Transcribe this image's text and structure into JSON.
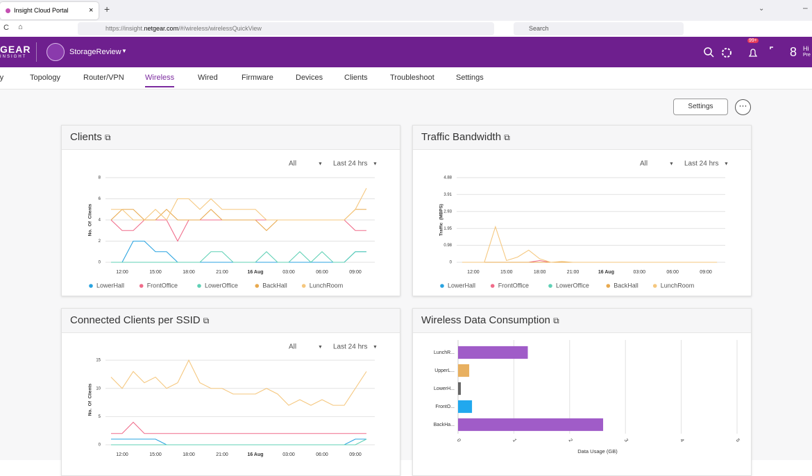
{
  "browser": {
    "tab_title": "Insight Cloud Portal",
    "url_prefix": "https://insight.",
    "url_domain": "netgear.com",
    "url_suffix": "/#/wireless/wirelessQuickView",
    "search": "Search"
  },
  "header": {
    "logo": "GEAR",
    "logo_sub": "INSIGHT",
    "org": "StorageReview",
    "badge": "99+",
    "user_hi": "Hi",
    "user_sub": "Pre"
  },
  "nav": {
    "items": [
      "ry",
      "Topology",
      "Router/VPN",
      "Wireless",
      "Wired",
      "Firmware",
      "Devices",
      "Clients",
      "Troubleshoot",
      "Settings"
    ],
    "active_index": 3
  },
  "settings_button": "Settings",
  "chart_data": [
    {
      "type": "line",
      "title": "Clients",
      "filter": "All",
      "range": "Last 24 hrs",
      "ylabel": "No.  Of  Clients",
      "legend": true,
      "x": [
        -1,
        0,
        1,
        2,
        3,
        4,
        5,
        6,
        7,
        8,
        9,
        10,
        11,
        12,
        13,
        14,
        15,
        16,
        17,
        18,
        19,
        20,
        21,
        22
      ],
      "xlim": [
        -1.5,
        22.75
      ],
      "xticks": [
        {
          "value": 0,
          "label": "12:00"
        },
        {
          "value": 3,
          "label": "15:00"
        },
        {
          "value": 6,
          "label": "18:00"
        },
        {
          "value": 9,
          "label": "21:00"
        },
        {
          "value": 12,
          "label": "16 Aug"
        },
        {
          "value": 15,
          "label": "03:00"
        },
        {
          "value": 18,
          "label": "06:00"
        },
        {
          "value": 21,
          "label": "09:00"
        }
      ],
      "ylim": [
        0,
        8
      ],
      "yticks": [
        0,
        2,
        4,
        6,
        8
      ],
      "grid": true,
      "series": [
        {
          "name": "LowerHall",
          "color": "#29a3e0",
          "values": [
            0,
            0,
            2,
            2,
            1,
            1,
            0,
            0,
            0,
            0,
            0,
            0,
            0,
            0,
            0,
            0,
            0,
            0,
            0,
            0,
            0,
            0,
            1,
            1
          ]
        },
        {
          "name": "FrontOffice",
          "color": "#f06c8a",
          "values": [
            4,
            3,
            3,
            4,
            4,
            4,
            2,
            4,
            4,
            4,
            4,
            4,
            4,
            4,
            4,
            4,
            4,
            4,
            4,
            4,
            4,
            4,
            3,
            3
          ]
        },
        {
          "name": "LowerOffice",
          "color": "#5fd0b5",
          "values": [
            0,
            0,
            0,
            0,
            0,
            0,
            0,
            0,
            0,
            1,
            1,
            0,
            0,
            0,
            1,
            0,
            0,
            1,
            0,
            1,
            0,
            0,
            1,
            1
          ]
        },
        {
          "name": "BackHall",
          "color": "#e8a94e",
          "values": [
            4,
            5,
            5,
            4,
            4,
            5,
            4,
            4,
            4,
            5,
            4,
            4,
            4,
            4,
            3,
            4,
            4,
            4,
            4,
            4,
            4,
            4,
            5,
            5
          ]
        },
        {
          "name": "LunchRoom",
          "color": "#f5c77e",
          "values": [
            5,
            5,
            4,
            4,
            5,
            4,
            6,
            6,
            5,
            6,
            5,
            5,
            5,
            5,
            4,
            4,
            4,
            4,
            4,
            4,
            4,
            4,
            5,
            7
          ]
        }
      ]
    },
    {
      "type": "line",
      "title": "Traffic Bandwidth",
      "filter": "All",
      "range": "Last 24 hrs",
      "ylabel": "Traffic  (MBPS)",
      "legend": true,
      "x": [
        -1,
        0,
        1,
        2,
        3,
        4,
        5,
        6,
        7,
        8,
        9,
        10,
        11,
        12,
        13,
        14,
        15,
        16,
        17,
        18,
        19,
        20,
        21,
        22
      ],
      "xlim": [
        -1.5,
        22.75
      ],
      "xticks": [
        {
          "value": 0,
          "label": "12:00"
        },
        {
          "value": 3,
          "label": "15:00"
        },
        {
          "value": 6,
          "label": "18:00"
        },
        {
          "value": 9,
          "label": "21:00"
        },
        {
          "value": 12,
          "label": "16 Aug"
        },
        {
          "value": 15,
          "label": "03:00"
        },
        {
          "value": 18,
          "label": "06:00"
        },
        {
          "value": 21,
          "label": "09:00"
        }
      ],
      "ylim": [
        0,
        4.88
      ],
      "yticks": [
        0,
        0.98,
        1.95,
        2.93,
        3.91,
        4.88
      ],
      "grid": true,
      "series": [
        {
          "name": "LowerHall",
          "color": "#29a3e0",
          "values": [
            0,
            0,
            0,
            0,
            0,
            0,
            0,
            0,
            0,
            0,
            0,
            0,
            0,
            0,
            0,
            0,
            0,
            0,
            0,
            0,
            0,
            0,
            0,
            0
          ]
        },
        {
          "name": "FrontOffice",
          "color": "#f06c8a",
          "values": [
            0,
            0,
            0,
            0,
            0,
            0,
            0,
            0.1,
            0,
            0,
            0,
            0,
            0,
            0,
            0,
            0,
            0,
            0,
            0,
            0,
            0,
            0,
            0,
            0
          ]
        },
        {
          "name": "LowerOffice",
          "color": "#5fd0b5",
          "values": [
            0,
            0,
            0,
            0,
            0,
            0,
            0,
            0,
            0,
            0,
            0,
            0,
            0,
            0,
            0,
            0,
            0,
            0,
            0,
            0,
            0,
            0,
            0,
            0
          ]
        },
        {
          "name": "BackHall",
          "color": "#e8a94e",
          "values": [
            0,
            0,
            0,
            0,
            0,
            0,
            0,
            0,
            0,
            0,
            0,
            0,
            0,
            0,
            0,
            0,
            0,
            0,
            0,
            0,
            0,
            0,
            0,
            0
          ]
        },
        {
          "name": "LunchRoom",
          "color": "#f5c77e",
          "values": [
            0,
            0,
            0,
            2.05,
            0.1,
            0.3,
            0.7,
            0.2,
            0,
            0.05,
            0,
            0,
            0,
            0,
            0,
            0,
            0,
            0,
            0,
            0,
            0,
            0,
            0,
            0
          ]
        }
      ]
    },
    {
      "type": "line",
      "title": "Connected Clients per SSID",
      "filter": "All",
      "range": "Last 24 hrs",
      "ylabel": "No.  Of  Clients",
      "legend": false,
      "x": [
        -1,
        0,
        1,
        2,
        3,
        4,
        5,
        6,
        7,
        8,
        9,
        10,
        11,
        12,
        13,
        14,
        15,
        16,
        17,
        18,
        19,
        20,
        21,
        22
      ],
      "xlim": [
        -1.5,
        22.75
      ],
      "xticks": [
        {
          "value": 0,
          "label": "12:00"
        },
        {
          "value": 3,
          "label": "15:00"
        },
        {
          "value": 6,
          "label": "18:00"
        },
        {
          "value": 9,
          "label": "21:00"
        },
        {
          "value": 12,
          "label": "16 Aug"
        },
        {
          "value": 15,
          "label": "03:00"
        },
        {
          "value": 18,
          "label": "06:00"
        },
        {
          "value": 21,
          "label": "09:00"
        }
      ],
      "ylim": [
        0,
        16
      ],
      "yticks": [
        0,
        5,
        10,
        15
      ],
      "grid": true,
      "series": [
        {
          "color": "#f5c77e",
          "values": [
            12,
            10,
            13,
            11,
            12,
            10,
            11,
            15,
            11,
            10,
            10,
            9,
            9,
            9,
            10,
            9,
            7,
            8,
            7,
            8,
            7,
            7,
            10,
            13
          ]
        },
        {
          "color": "#f06c8a",
          "values": [
            2,
            2,
            4,
            2,
            2,
            2,
            2,
            2,
            2,
            2,
            2,
            2,
            2,
            2,
            2,
            2,
            2,
            2,
            2,
            2,
            2,
            2,
            2,
            2
          ]
        },
        {
          "color": "#29a3e0",
          "values": [
            1,
            1,
            1,
            1,
            1,
            0,
            0,
            0,
            0,
            0,
            0,
            0,
            0,
            0,
            0,
            0,
            0,
            0,
            0,
            0,
            0,
            0,
            1,
            1
          ]
        },
        {
          "color": "#5fd0b5",
          "values": [
            0,
            0,
            0,
            0,
            0,
            0,
            0,
            0,
            0,
            0,
            0,
            0,
            0,
            0,
            0,
            0,
            0,
            0,
            0,
            0,
            0,
            0,
            0,
            1
          ]
        }
      ]
    },
    {
      "type": "hbar",
      "title": "Wireless Data Consumption",
      "xlabel": "Data Usage (GB)",
      "categories": [
        "LunchR...",
        "UpperL...",
        "LowerH...",
        "FrontO...",
        "BackHa..."
      ],
      "values": [
        1.25,
        0.2,
        0.05,
        0.25,
        2.6
      ],
      "colors": [
        "#a05cc8",
        "#e8b060",
        "#666666",
        "#21a8ee",
        "#a05cc8"
      ],
      "xlim": [
        0,
        5
      ],
      "xticks": [
        0,
        1,
        2,
        3,
        4,
        5
      ],
      "grid": true
    }
  ]
}
